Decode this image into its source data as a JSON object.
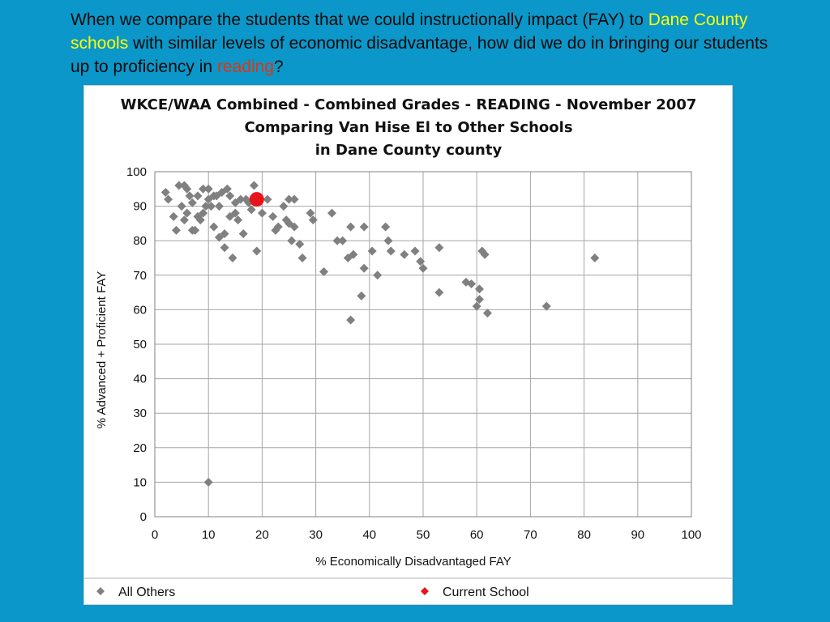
{
  "caption": {
    "part1": "When we compare the students that we could instructionally impact (FAY) to ",
    "highlight1": "Dane County schools",
    "part2": " with similar levels of economic disadvantage, how did we do in bringing our students up to proficiency in ",
    "highlight2": "reading",
    "part3": "?",
    "highlight1_color": "#ffff00",
    "highlight2_color": "#e2340f"
  },
  "chart_data": {
    "type": "scatter",
    "title_lines": [
      "WKCE/WAA Combined - Combined Grades  - READING - November 2007",
      "Comparing Van Hise El to Other Schools",
      "in Dane County county"
    ],
    "xlabel": "% Economically Disadvantaged FAY",
    "ylabel": "% Advanced + Proficient FAY",
    "xlim": [
      0,
      100
    ],
    "ylim": [
      0,
      100
    ],
    "xticks": [
      0,
      10,
      20,
      30,
      40,
      50,
      60,
      70,
      80,
      90,
      100
    ],
    "yticks": [
      0,
      10,
      20,
      30,
      40,
      50,
      60,
      70,
      80,
      90,
      100
    ],
    "grid": true,
    "legend_position": "bottom",
    "series": [
      {
        "name": "All Others",
        "color": "#808080",
        "marker": "diamond",
        "points": [
          [
            2,
            94
          ],
          [
            2.5,
            92
          ],
          [
            3.5,
            87
          ],
          [
            4,
            83
          ],
          [
            4.5,
            96
          ],
          [
            5,
            90
          ],
          [
            5.5,
            96
          ],
          [
            5.5,
            86
          ],
          [
            6,
            95
          ],
          [
            6,
            88
          ],
          [
            6.5,
            93
          ],
          [
            7,
            91
          ],
          [
            7,
            83
          ],
          [
            7.5,
            83
          ],
          [
            8,
            93
          ],
          [
            8,
            87
          ],
          [
            8.5,
            86
          ],
          [
            9,
            95
          ],
          [
            9,
            88
          ],
          [
            9.5,
            90
          ],
          [
            10,
            95
          ],
          [
            10,
            92
          ],
          [
            10.5,
            90
          ],
          [
            11,
            93
          ],
          [
            11,
            84
          ],
          [
            11.5,
            93
          ],
          [
            12,
            90
          ],
          [
            12,
            81
          ],
          [
            12.5,
            94
          ],
          [
            13,
            82
          ],
          [
            13,
            78
          ],
          [
            13.5,
            95
          ],
          [
            14,
            93
          ],
          [
            14,
            87
          ],
          [
            14.5,
            75
          ],
          [
            15,
            91
          ],
          [
            15,
            88
          ],
          [
            15.5,
            86
          ],
          [
            16,
            92
          ],
          [
            16.5,
            82
          ],
          [
            17,
            92
          ],
          [
            17.5,
            91
          ],
          [
            18,
            89
          ],
          [
            18.5,
            96
          ],
          [
            19,
            77
          ],
          [
            19.5,
            92
          ],
          [
            20,
            88
          ],
          [
            21,
            92
          ],
          [
            22,
            87
          ],
          [
            22.5,
            83
          ],
          [
            23,
            84
          ],
          [
            24,
            90
          ],
          [
            24.5,
            86
          ],
          [
            25,
            92
          ],
          [
            25,
            85
          ],
          [
            25.5,
            80
          ],
          [
            26,
            84
          ],
          [
            26,
            92
          ],
          [
            27,
            79
          ],
          [
            27.5,
            75
          ],
          [
            29,
            88
          ],
          [
            29.5,
            86
          ],
          [
            31.5,
            71
          ],
          [
            33,
            88
          ],
          [
            34,
            80
          ],
          [
            35,
            80
          ],
          [
            36,
            75
          ],
          [
            36.5,
            84
          ],
          [
            36.5,
            57
          ],
          [
            37,
            76
          ],
          [
            38.5,
            64
          ],
          [
            39,
            72
          ],
          [
            39,
            84
          ],
          [
            40.5,
            77
          ],
          [
            41.5,
            70
          ],
          [
            43,
            84
          ],
          [
            43.5,
            80
          ],
          [
            44,
            77
          ],
          [
            46.5,
            76
          ],
          [
            48.5,
            77
          ],
          [
            49.5,
            74
          ],
          [
            50,
            72
          ],
          [
            53,
            78
          ],
          [
            53,
            65
          ],
          [
            58,
            68
          ],
          [
            59,
            67.5
          ],
          [
            60,
            61
          ],
          [
            60.5,
            63
          ],
          [
            60.5,
            66
          ],
          [
            61,
            77
          ],
          [
            61.5,
            76
          ],
          [
            62,
            59
          ],
          [
            73,
            61
          ],
          [
            82,
            75
          ],
          [
            10,
            10
          ]
        ]
      },
      {
        "name": "Current School",
        "color": "#e8141c",
        "marker": "circle",
        "points": [
          [
            19,
            92
          ]
        ]
      }
    ]
  }
}
